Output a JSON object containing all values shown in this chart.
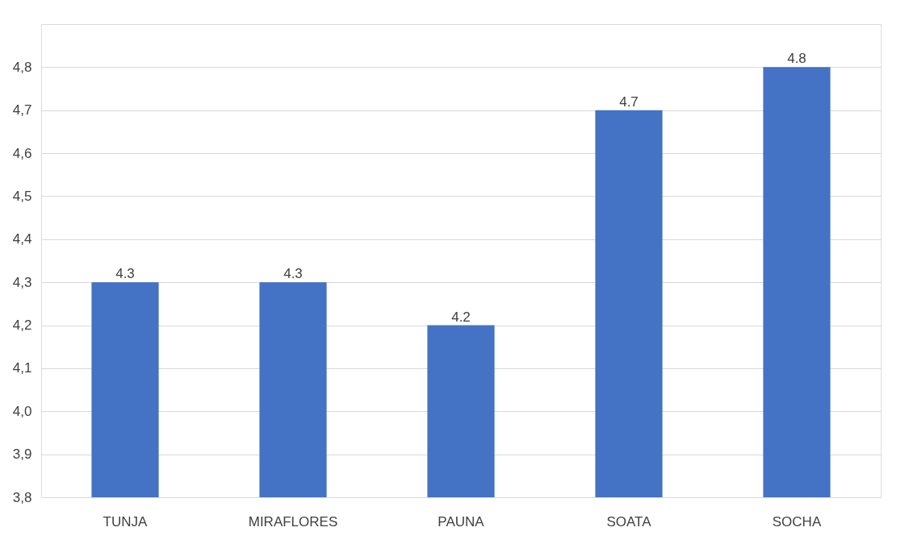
{
  "chart_data": {
    "type": "bar",
    "categories": [
      "TUNJA",
      "MIRAFLORES",
      "PAUNA",
      "SOATA",
      "SOCHA"
    ],
    "values": [
      4.3,
      4.3,
      4.2,
      4.7,
      4.8
    ],
    "value_labels": [
      "4.3",
      "4.3",
      "4.2",
      "4.7",
      "4.8"
    ],
    "color": "#4472c4",
    "ylim": [
      3.8,
      4.9
    ],
    "yticks": [
      {
        "value": 3.8,
        "label": "3,8"
      },
      {
        "value": 3.9,
        "label": "3,9"
      },
      {
        "value": 4.0,
        "label": "4,0"
      },
      {
        "value": 4.1,
        "label": "4,1"
      },
      {
        "value": 4.2,
        "label": "4,2"
      },
      {
        "value": 4.3,
        "label": "4,3"
      },
      {
        "value": 4.4,
        "label": "4,4"
      },
      {
        "value": 4.5,
        "label": "4,5"
      },
      {
        "value": 4.6,
        "label": "4,6"
      },
      {
        "value": 4.7,
        "label": "4,7"
      },
      {
        "value": 4.8,
        "label": "4,8"
      },
      {
        "value": 4.9,
        "label": null
      }
    ],
    "grid": "y"
  }
}
